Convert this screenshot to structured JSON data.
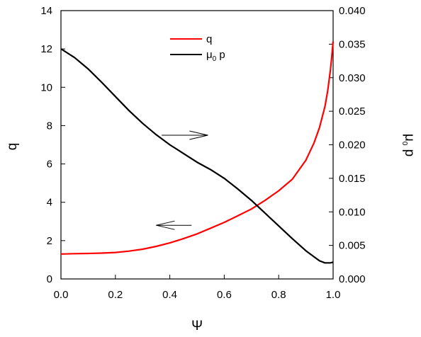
{
  "chart_data": {
    "type": "line",
    "xlabel": "Ψ",
    "ylabel_left": "q",
    "ylabel_right": "μ0 p",
    "xlim": [
      0,
      1.0
    ],
    "ylim_left": [
      0,
      14
    ],
    "ylim_right": [
      0.0,
      0.04
    ],
    "x_ticks": [
      "0.0",
      "0.2",
      "0.4",
      "0.6",
      "0.8",
      "1.0"
    ],
    "y_left_ticks": [
      "0",
      "2",
      "4",
      "6",
      "8",
      "10",
      "12",
      "14"
    ],
    "y_right_ticks": [
      "0.000",
      "0.005",
      "0.010",
      "0.015",
      "0.020",
      "0.025",
      "0.030",
      "0.035",
      "0.040"
    ],
    "grid": false,
    "legend_position": "top-center",
    "legend": [
      {
        "label": "q",
        "color": "#ff0000"
      },
      {
        "label_main": "μ",
        "label_sub": "0",
        "label_tail": " p",
        "color": "#000000"
      }
    ],
    "series": [
      {
        "name": "q",
        "axis": "left",
        "color": "#ff0000",
        "x": [
          0.0,
          0.05,
          0.1,
          0.15,
          0.2,
          0.25,
          0.3,
          0.35,
          0.4,
          0.45,
          0.5,
          0.55,
          0.6,
          0.65,
          0.7,
          0.75,
          0.8,
          0.85,
          0.9,
          0.93,
          0.95,
          0.97,
          0.98,
          0.99,
          0.995,
          1.0
        ],
        "values": [
          1.3,
          1.32,
          1.33,
          1.35,
          1.38,
          1.45,
          1.55,
          1.7,
          1.88,
          2.1,
          2.35,
          2.65,
          2.95,
          3.3,
          3.65,
          4.1,
          4.6,
          5.2,
          6.2,
          7.1,
          7.9,
          9.0,
          9.8,
          10.9,
          11.6,
          12.4
        ]
      },
      {
        "name": "μ0 p",
        "axis": "right",
        "color": "#000000",
        "x": [
          0.0,
          0.05,
          0.1,
          0.15,
          0.2,
          0.25,
          0.3,
          0.35,
          0.4,
          0.45,
          0.5,
          0.55,
          0.6,
          0.65,
          0.7,
          0.75,
          0.8,
          0.85,
          0.9,
          0.93,
          0.95,
          0.97,
          0.98,
          0.99,
          1.0
        ],
        "values": [
          0.0343,
          0.033,
          0.0313,
          0.0293,
          0.0272,
          0.0251,
          0.0232,
          0.0215,
          0.02,
          0.0187,
          0.0174,
          0.0163,
          0.015,
          0.0134,
          0.0117,
          0.0098,
          0.0079,
          0.006,
          0.0042,
          0.0033,
          0.0027,
          0.0024,
          0.0024,
          0.0024,
          0.0025
        ]
      }
    ],
    "annotations": [
      {
        "type": "arrow",
        "direction": "right",
        "x_from": 0.37,
        "x_to": 0.54,
        "axis": "left",
        "y": 7.5
      },
      {
        "type": "arrow",
        "direction": "left",
        "x_from": 0.48,
        "x_to": 0.35,
        "axis": "left",
        "y": 2.8
      }
    ]
  }
}
